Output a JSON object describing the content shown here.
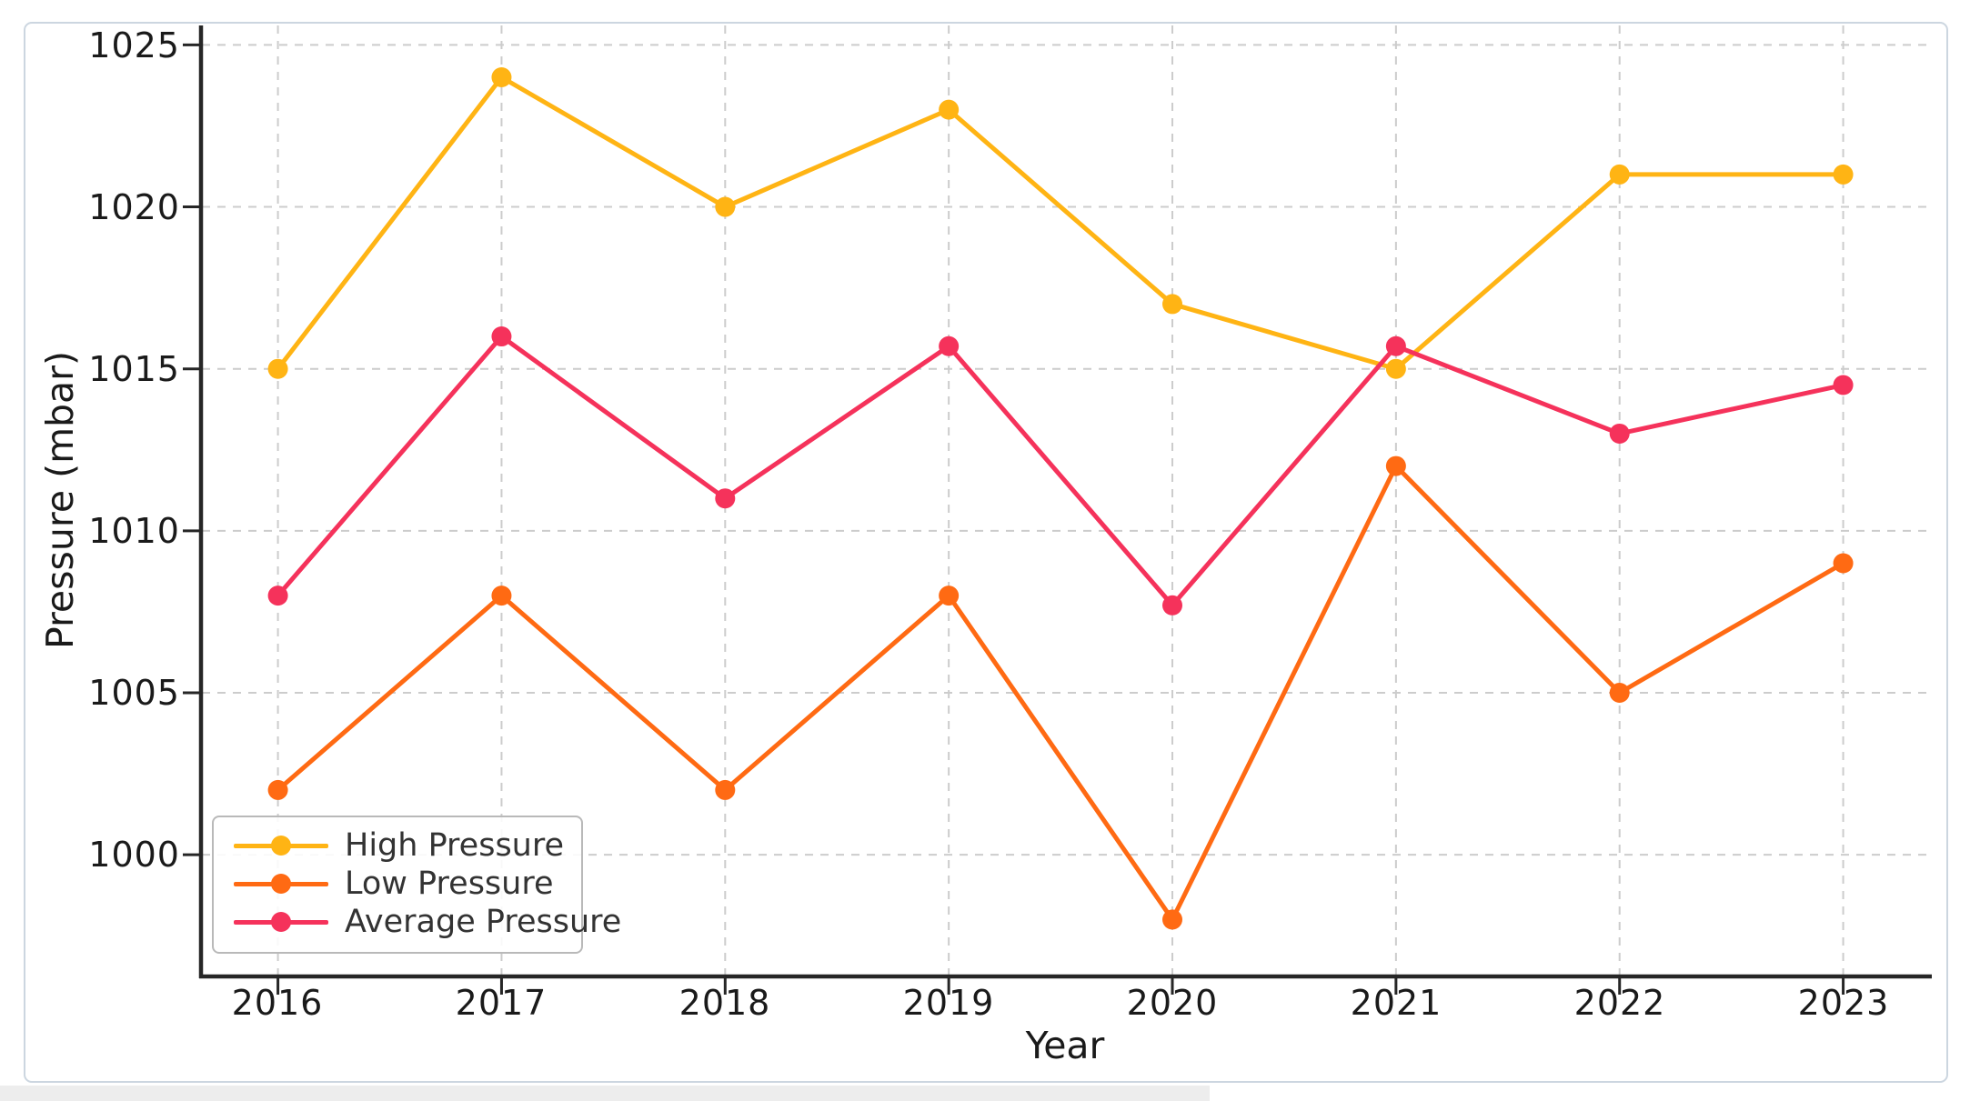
{
  "chart_data": {
    "type": "line",
    "xlabel": "Year",
    "ylabel": "Pressure (mbar)",
    "categories": [
      "2016",
      "2017",
      "2018",
      "2019",
      "2020",
      "2021",
      "2022",
      "2023"
    ],
    "series": [
      {
        "name": "High Pressure",
        "color": "#FFB414",
        "values": [
          1015,
          1024,
          1020,
          1023,
          1017,
          1015,
          1021,
          1021
        ]
      },
      {
        "name": "Low Pressure",
        "color": "#FF6A13",
        "values": [
          1002,
          1008,
          1002,
          1008,
          998,
          1012,
          1005,
          1009
        ]
      },
      {
        "name": "Average Pressure",
        "color": "#F5325B",
        "values": [
          1008,
          1016,
          1011,
          1015.7,
          1007.7,
          1015.7,
          1013,
          1014.5
        ]
      }
    ],
    "yticks": [
      1025,
      1020,
      1015,
      1010,
      1005,
      1000
    ],
    "ylim": [
      996.3,
      1025.6
    ],
    "xlim": [
      2015.66,
      2023.38
    ],
    "grid": "dashed",
    "grid_color": "#cccccc",
    "spine_color": "#262626",
    "legend_position": "lower left"
  }
}
